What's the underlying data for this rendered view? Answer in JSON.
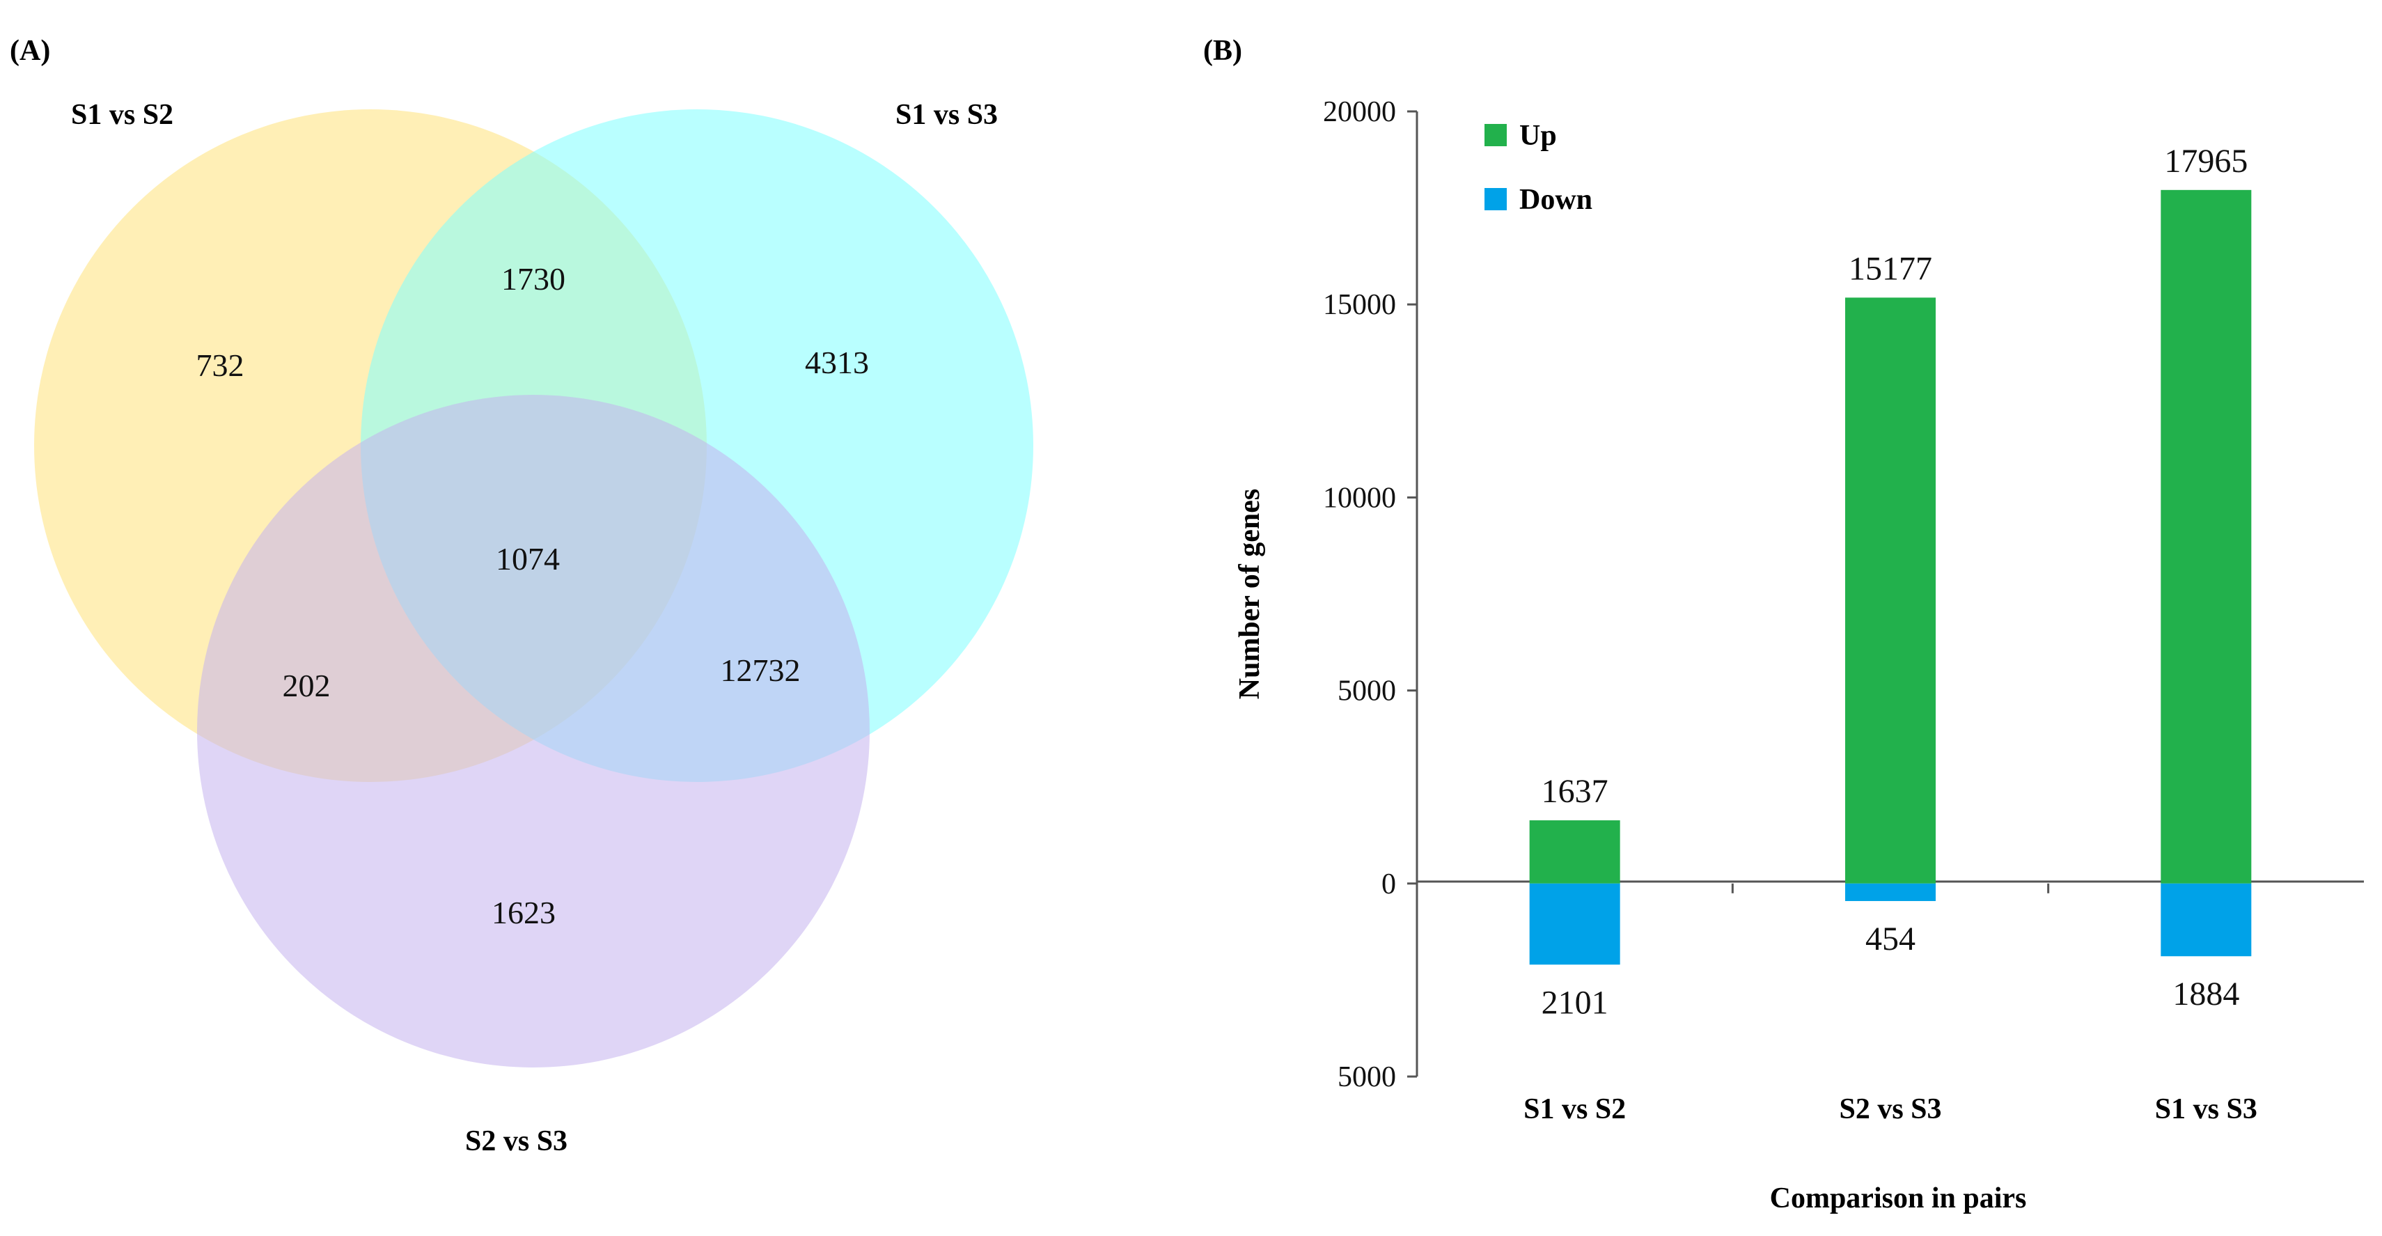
{
  "panels": {
    "a_label": "(A)",
    "b_label": "(B)"
  },
  "colors": {
    "set1": "#FFE27A",
    "set2": "#7FFFFF",
    "set3": "#C4B2EE",
    "up": "#22B14C",
    "down": "#00A2E8"
  },
  "chart_data": [
    {
      "type": "venn",
      "sets": [
        "S1 vs S2",
        "S1 vs S3",
        "S2 vs S3"
      ],
      "regions": {
        "only_s1s2": "732",
        "only_s1s3": "4313",
        "only_s2s3": "1623",
        "s1s2_and_s1s3": "1730",
        "s1s2_and_s2s3": "202",
        "s1s3_and_s2s3": "12732",
        "all_three": "1074"
      }
    },
    {
      "type": "bar",
      "categories": [
        "S1 vs S2",
        "S2 vs S3",
        "S1 vs S3"
      ],
      "series": [
        {
          "name": "Up",
          "values": [
            1637,
            15177,
            17965
          ],
          "labels": [
            "1637",
            "15177",
            "17965"
          ]
        },
        {
          "name": "Down",
          "values": [
            2101,
            454,
            1884
          ],
          "labels": [
            "2101",
            "454",
            "1884"
          ]
        }
      ],
      "xlabel": "Comparison in pairs",
      "ylabel": "Number of genes",
      "yticks": [
        {
          "value": 20000,
          "label": "20000"
        },
        {
          "value": 15000,
          "label": "15000"
        },
        {
          "value": 10000,
          "label": "10000"
        },
        {
          "value": 5000,
          "label": "5000"
        },
        {
          "value": 0,
          "label": "0"
        },
        {
          "value": -5000,
          "label": "5000"
        }
      ],
      "ylim": [
        -5000,
        20000
      ],
      "grid": false,
      "legend_position": "top-left"
    }
  ]
}
